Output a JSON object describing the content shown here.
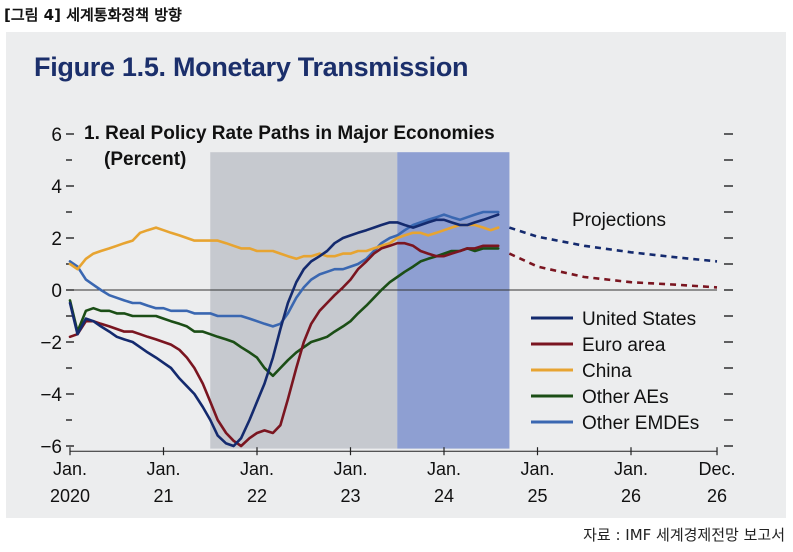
{
  "page_label": "[그림 4] 세계통화정책 방향",
  "source": "자료 : IMF 세계경제전망 보고서",
  "chart_data": {
    "type": "line",
    "title": "Figure 1.5.  Monetary Transmission",
    "subtitle": "1. Real Policy Rate Paths in Major Economies",
    "ylabel": "(Percent)",
    "ylim": [
      -6,
      6
    ],
    "yticks": [
      6,
      4,
      2,
      0,
      -2,
      -4,
      -6
    ],
    "ytick_labels": [
      "6",
      "4",
      "2",
      "0",
      "−2",
      "−4",
      "−6"
    ],
    "xlim": [
      0,
      7
    ],
    "xticks": [
      {
        "x": 0,
        "line1": "Jan.",
        "line2": "2020"
      },
      {
        "x": 1,
        "line1": "Jan.",
        "line2": "21"
      },
      {
        "x": 2,
        "line1": "Jan.",
        "line2": "22"
      },
      {
        "x": 3,
        "line1": "Jan.",
        "line2": "23"
      },
      {
        "x": 4,
        "line1": "Jan.",
        "line2": "24"
      },
      {
        "x": 5,
        "line1": "Jan.",
        "line2": "25"
      },
      {
        "x": 6,
        "line1": "Jan.",
        "line2": "26"
      },
      {
        "x": 6.92,
        "line1": "Dec.",
        "line2": "26"
      }
    ],
    "shaded_regions": [
      {
        "x0": 1.5,
        "x1": 3.5,
        "color": "#c6c9cf"
      },
      {
        "x0": 3.5,
        "x1": 4.7,
        "color": "#8e9fd2"
      }
    ],
    "projection_label": "Projections",
    "series": [
      {
        "name": "United States",
        "color": "#142a6e",
        "x": [
          0,
          0.08,
          0.17,
          0.25,
          0.33,
          0.42,
          0.5,
          0.58,
          0.67,
          0.75,
          0.83,
          0.92,
          1.0,
          1.08,
          1.17,
          1.25,
          1.33,
          1.42,
          1.5,
          1.58,
          1.67,
          1.75,
          1.83,
          1.92,
          2.0,
          2.08,
          2.17,
          2.25,
          2.33,
          2.42,
          2.5,
          2.58,
          2.67,
          2.75,
          2.83,
          2.92,
          3.0,
          3.08,
          3.17,
          3.25,
          3.33,
          3.42,
          3.5,
          3.58,
          3.67,
          3.75,
          3.83,
          3.92,
          4.0,
          4.08,
          4.17,
          4.25,
          4.33,
          4.42,
          4.5,
          4.58
        ],
        "values": [
          -0.5,
          -1.7,
          -1.1,
          -1.2,
          -1.4,
          -1.6,
          -1.8,
          -1.9,
          -2.0,
          -2.2,
          -2.4,
          -2.6,
          -2.8,
          -3.0,
          -3.4,
          -3.7,
          -4.0,
          -4.5,
          -5.0,
          -5.6,
          -5.9,
          -6.0,
          -5.7,
          -5.0,
          -4.3,
          -3.6,
          -2.6,
          -1.5,
          -0.5,
          0.3,
          0.8,
          1.1,
          1.3,
          1.5,
          1.8,
          2.0,
          2.1,
          2.2,
          2.3,
          2.4,
          2.5,
          2.6,
          2.6,
          2.5,
          2.4,
          2.5,
          2.6,
          2.7,
          2.7,
          2.6,
          2.5,
          2.5,
          2.6,
          2.7,
          2.8,
          2.9
        ]
      },
      {
        "name": "Euro area",
        "color": "#7a1520",
        "x": [
          0,
          0.08,
          0.17,
          0.25,
          0.33,
          0.42,
          0.5,
          0.58,
          0.67,
          0.75,
          0.83,
          0.92,
          1.0,
          1.08,
          1.17,
          1.25,
          1.33,
          1.42,
          1.5,
          1.58,
          1.67,
          1.75,
          1.83,
          1.92,
          2.0,
          2.08,
          2.17,
          2.25,
          2.33,
          2.42,
          2.5,
          2.58,
          2.67,
          2.75,
          2.83,
          2.92,
          3.0,
          3.08,
          3.17,
          3.25,
          3.33,
          3.42,
          3.5,
          3.58,
          3.67,
          3.75,
          3.83,
          3.92,
          4.0,
          4.08,
          4.17,
          4.25,
          4.33,
          4.42,
          4.5,
          4.58
        ],
        "values": [
          -1.8,
          -1.7,
          -1.2,
          -1.2,
          -1.3,
          -1.4,
          -1.5,
          -1.6,
          -1.6,
          -1.7,
          -1.8,
          -1.9,
          -2.0,
          -2.1,
          -2.3,
          -2.6,
          -3.0,
          -3.6,
          -4.3,
          -5.0,
          -5.5,
          -5.8,
          -6.0,
          -5.7,
          -5.5,
          -5.4,
          -5.5,
          -5.2,
          -4.2,
          -3.0,
          -2.0,
          -1.3,
          -0.8,
          -0.5,
          -0.2,
          0.1,
          0.4,
          0.8,
          1.1,
          1.4,
          1.6,
          1.7,
          1.8,
          1.8,
          1.7,
          1.5,
          1.4,
          1.3,
          1.3,
          1.4,
          1.5,
          1.6,
          1.6,
          1.7,
          1.7,
          1.7
        ]
      },
      {
        "name": "China",
        "color": "#e7a431",
        "x": [
          0,
          0.08,
          0.17,
          0.25,
          0.33,
          0.42,
          0.5,
          0.58,
          0.67,
          0.75,
          0.83,
          0.92,
          1.0,
          1.08,
          1.17,
          1.25,
          1.33,
          1.42,
          1.5,
          1.58,
          1.67,
          1.75,
          1.83,
          1.92,
          2.0,
          2.08,
          2.17,
          2.25,
          2.33,
          2.42,
          2.5,
          2.58,
          2.67,
          2.75,
          2.83,
          2.92,
          3.0,
          3.08,
          3.17,
          3.25,
          3.33,
          3.42,
          3.5,
          3.58,
          3.67,
          3.75,
          3.83,
          3.92,
          4.0,
          4.08,
          4.17,
          4.25,
          4.33,
          4.42,
          4.5,
          4.58
        ],
        "values": [
          1.0,
          0.8,
          1.2,
          1.4,
          1.5,
          1.6,
          1.7,
          1.8,
          1.9,
          2.2,
          2.3,
          2.4,
          2.3,
          2.2,
          2.1,
          2.0,
          1.9,
          1.9,
          1.9,
          1.9,
          1.8,
          1.7,
          1.6,
          1.6,
          1.5,
          1.5,
          1.5,
          1.4,
          1.3,
          1.2,
          1.3,
          1.3,
          1.4,
          1.3,
          1.3,
          1.4,
          1.4,
          1.5,
          1.5,
          1.6,
          1.7,
          1.8,
          2.0,
          2.1,
          2.2,
          2.2,
          2.1,
          2.2,
          2.3,
          2.4,
          2.5,
          2.5,
          2.5,
          2.4,
          2.3,
          2.4
        ]
      },
      {
        "name": "Other AEs",
        "color": "#1b4e16",
        "x": [
          0,
          0.08,
          0.17,
          0.25,
          0.33,
          0.42,
          0.5,
          0.58,
          0.67,
          0.75,
          0.83,
          0.92,
          1.0,
          1.08,
          1.17,
          1.25,
          1.33,
          1.42,
          1.5,
          1.58,
          1.67,
          1.75,
          1.83,
          1.92,
          2.0,
          2.08,
          2.17,
          2.25,
          2.33,
          2.42,
          2.5,
          2.58,
          2.67,
          2.75,
          2.83,
          2.92,
          3.0,
          3.08,
          3.17,
          3.25,
          3.33,
          3.42,
          3.5,
          3.58,
          3.67,
          3.75,
          3.83,
          3.92,
          4.0,
          4.08,
          4.17,
          4.25,
          4.33,
          4.42,
          4.5,
          4.58
        ],
        "values": [
          -0.4,
          -1.6,
          -0.8,
          -0.7,
          -0.8,
          -0.8,
          -0.9,
          -0.9,
          -1.0,
          -1.0,
          -1.0,
          -1.0,
          -1.1,
          -1.2,
          -1.3,
          -1.4,
          -1.6,
          -1.6,
          -1.7,
          -1.8,
          -1.9,
          -2.0,
          -2.2,
          -2.4,
          -2.6,
          -3.0,
          -3.3,
          -3.0,
          -2.7,
          -2.4,
          -2.2,
          -2.0,
          -1.9,
          -1.8,
          -1.6,
          -1.4,
          -1.2,
          -0.9,
          -0.6,
          -0.3,
          0.0,
          0.3,
          0.5,
          0.7,
          0.9,
          1.1,
          1.2,
          1.3,
          1.4,
          1.5,
          1.5,
          1.6,
          1.5,
          1.6,
          1.6,
          1.6
        ]
      },
      {
        "name": "Other EMDEs",
        "color": "#3a67b1",
        "x": [
          0,
          0.08,
          0.17,
          0.25,
          0.33,
          0.42,
          0.5,
          0.58,
          0.67,
          0.75,
          0.83,
          0.92,
          1.0,
          1.08,
          1.17,
          1.25,
          1.33,
          1.42,
          1.5,
          1.58,
          1.67,
          1.75,
          1.83,
          1.92,
          2.0,
          2.08,
          2.17,
          2.25,
          2.33,
          2.42,
          2.5,
          2.58,
          2.67,
          2.75,
          2.83,
          2.92,
          3.0,
          3.08,
          3.17,
          3.25,
          3.33,
          3.42,
          3.5,
          3.58,
          3.67,
          3.75,
          3.83,
          3.92,
          4.0,
          4.08,
          4.17,
          4.25,
          4.33,
          4.42,
          4.5,
          4.58
        ],
        "values": [
          1.1,
          0.9,
          0.4,
          0.2,
          0.0,
          -0.2,
          -0.3,
          -0.4,
          -0.5,
          -0.5,
          -0.6,
          -0.7,
          -0.7,
          -0.8,
          -0.8,
          -0.8,
          -0.9,
          -0.9,
          -0.9,
          -1.0,
          -1.0,
          -1.0,
          -1.0,
          -1.1,
          -1.2,
          -1.3,
          -1.4,
          -1.3,
          -0.9,
          -0.3,
          0.1,
          0.4,
          0.6,
          0.7,
          0.8,
          0.8,
          0.9,
          1.0,
          1.2,
          1.5,
          1.8,
          2.0,
          2.1,
          2.3,
          2.5,
          2.6,
          2.7,
          2.8,
          2.9,
          2.8,
          2.7,
          2.8,
          2.9,
          3.0,
          3.0,
          3.0
        ]
      },
      {
        "name": "United States projection",
        "color": "#142a6e",
        "dashed": true,
        "x": [
          4.7,
          5.0,
          5.5,
          6.0,
          6.5,
          6.92
        ],
        "values": [
          2.4,
          2.05,
          1.7,
          1.45,
          1.25,
          1.1
        ]
      },
      {
        "name": "Euro area projection",
        "color": "#7a1520",
        "dashed": true,
        "x": [
          4.7,
          5.0,
          5.5,
          6.0,
          6.5,
          6.92
        ],
        "values": [
          1.4,
          0.9,
          0.5,
          0.3,
          0.2,
          0.1
        ]
      }
    ],
    "legend": [
      "United States",
      "Euro area",
      "China",
      "Other AEs",
      "Other EMDEs"
    ],
    "legend_position": "lower-right"
  }
}
